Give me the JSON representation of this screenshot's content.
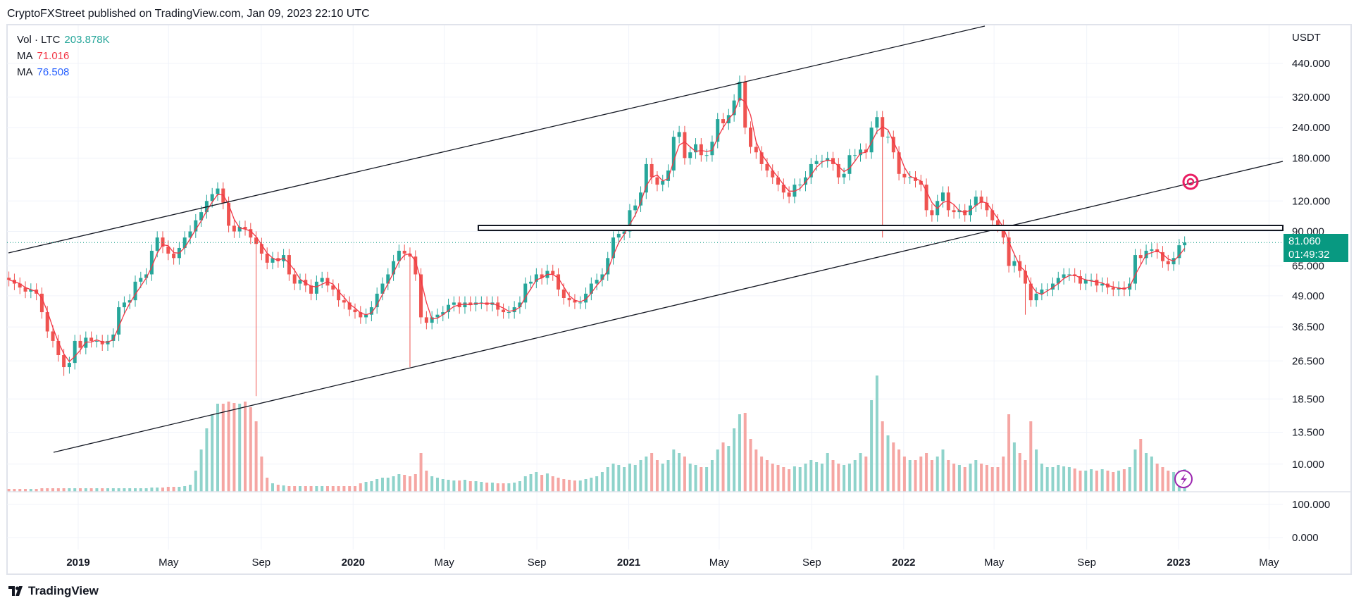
{
  "header": {
    "published": "CryptoFXStreet published on TradingView.com, Jan 09, 2023 22:10 UTC"
  },
  "legend": {
    "vol_label": "Vol · LTC",
    "vol_value": "203.878K",
    "ma1_label": "MA",
    "ma1_value": "71.016",
    "ma2_label": "MA",
    "ma2_value": "76.508"
  },
  "last_price": {
    "price": "81.060",
    "countdown": "01:49:32",
    "value": 81.06
  },
  "footer": {
    "brand": "TradingView"
  },
  "colors": {
    "up": "#26a69a",
    "down": "#ef5350",
    "up_vol": "#8fd3cb",
    "down_vol": "#f5a6a3",
    "ma": "#f23645",
    "last": "#089981",
    "alert": "#e91e63",
    "event": "#9c27b0"
  },
  "chart_data": {
    "type": "candlestick",
    "symbol": "LTC",
    "currency_label": "USDT",
    "scale": "log",
    "grid": true,
    "start_date": "2018-10-01",
    "end_date": "2023-01-09",
    "price_ticks": [
      "440.000",
      "320.000",
      "240.000",
      "180.000",
      "120.000",
      "90.000",
      "65.000",
      "49.000",
      "36.500",
      "26.500",
      "18.500",
      "13.500",
      "10.000"
    ],
    "indicator_ticks": [
      "100.000",
      "0.000"
    ],
    "time_ticks": [
      {
        "label": "2019",
        "date": "2019-01-01",
        "bold": true
      },
      {
        "label": "May",
        "date": "2019-05-01",
        "bold": false
      },
      {
        "label": "Sep",
        "date": "2019-09-01",
        "bold": false
      },
      {
        "label": "2020",
        "date": "2020-01-01",
        "bold": true
      },
      {
        "label": "May",
        "date": "2020-05-01",
        "bold": false
      },
      {
        "label": "Sep",
        "date": "2020-09-01",
        "bold": false
      },
      {
        "label": "2021",
        "date": "2021-01-01",
        "bold": true
      },
      {
        "label": "May",
        "date": "2021-05-01",
        "bold": false
      },
      {
        "label": "Sep",
        "date": "2021-09-01",
        "bold": false
      },
      {
        "label": "2022",
        "date": "2022-01-01",
        "bold": true
      },
      {
        "label": "May",
        "date": "2022-05-01",
        "bold": false
      },
      {
        "label": "Sep",
        "date": "2022-09-01",
        "bold": false
      },
      {
        "label": "2023",
        "date": "2023-01-01",
        "bold": true
      },
      {
        "label": "May",
        "date": "2023-05-01",
        "bold": false
      }
    ],
    "closes": [
      57,
      55,
      53,
      51,
      52,
      50,
      42,
      35,
      32,
      28,
      25,
      26,
      32,
      30,
      33,
      32,
      32,
      31,
      32,
      34,
      44,
      46,
      47,
      56,
      58,
      60,
      75,
      85,
      78,
      73,
      70,
      77,
      85,
      90,
      100,
      108,
      120,
      128,
      135,
      118,
      95,
      90,
      94,
      92,
      85,
      80,
      73,
      67,
      70,
      68,
      72,
      60,
      55,
      57,
      54,
      50,
      56,
      58,
      54,
      52,
      47,
      46,
      43,
      42,
      40,
      41,
      44,
      50,
      55,
      60,
      68,
      75,
      73,
      71,
      60,
      40,
      38,
      40,
      41,
      42,
      45,
      46,
      44,
      46,
      45,
      46,
      46,
      45,
      46,
      43,
      42,
      42,
      44,
      46,
      55,
      56,
      60,
      58,
      62,
      60,
      52,
      48,
      47,
      46,
      46,
      50,
      55,
      57,
      60,
      70,
      85,
      88,
      90,
      110,
      115,
      130,
      170,
      150,
      140,
      145,
      160,
      220,
      230,
      180,
      190,
      205,
      185,
      185,
      210,
      260,
      250,
      270,
      310,
      370,
      240,
      200,
      190,
      170,
      160,
      150,
      140,
      130,
      125,
      140,
      140,
      150,
      170,
      175,
      175,
      180,
      170,
      150,
      155,
      185,
      185,
      195,
      190,
      240,
      265,
      220,
      220,
      190,
      155,
      150,
      150,
      145,
      140,
      110,
      105,
      120,
      130,
      110,
      108,
      110,
      105,
      115,
      125,
      118,
      110,
      100,
      95,
      85,
      65,
      68,
      62,
      55,
      47,
      50,
      52,
      52,
      55,
      58,
      60,
      60,
      59,
      55,
      57,
      57,
      54,
      55,
      53,
      52,
      53,
      52,
      55,
      72,
      70,
      75,
      76,
      74,
      68,
      66,
      70,
      79,
      81.06
    ],
    "volumes": [
      4,
      4,
      4,
      4,
      4,
      4,
      5,
      5,
      5,
      5,
      5,
      5,
      5,
      5,
      5,
      5,
      5,
      5,
      5,
      5,
      5,
      5,
      5,
      5,
      5,
      5,
      6,
      6,
      6,
      7,
      7,
      7,
      8,
      10,
      30,
      60,
      90,
      110,
      125,
      125,
      128,
      126,
      125,
      128,
      120,
      100,
      50,
      20,
      12,
      10,
      9,
      8,
      8,
      8,
      8,
      8,
      8,
      8,
      8,
      8,
      8,
      8,
      8,
      8,
      12,
      14,
      15,
      18,
      20,
      20,
      22,
      25,
      24,
      22,
      25,
      55,
      30,
      22,
      20,
      18,
      17,
      16,
      16,
      17,
      15,
      15,
      14,
      13,
      13,
      12,
      12,
      12,
      13,
      15,
      22,
      25,
      28,
      24,
      26,
      22,
      20,
      18,
      17,
      16,
      16,
      18,
      20,
      22,
      28,
      35,
      40,
      38,
      35,
      40,
      38,
      45,
      50,
      55,
      45,
      40,
      45,
      60,
      55,
      50,
      40,
      38,
      35,
      35,
      45,
      60,
      70,
      65,
      90,
      110,
      112,
      75,
      60,
      50,
      45,
      40,
      38,
      35,
      32,
      36,
      35,
      40,
      45,
      42,
      40,
      55,
      45,
      40,
      38,
      40,
      45,
      55,
      50,
      130,
      165,
      100,
      80,
      70,
      60,
      50,
      45,
      45,
      50,
      55,
      45,
      50,
      60,
      45,
      40,
      38,
      35,
      40,
      45,
      40,
      38,
      35,
      35,
      50,
      110,
      70,
      55,
      45,
      100,
      60,
      40,
      35,
      35,
      38,
      36,
      35,
      33,
      30,
      30,
      32,
      30,
      32,
      30,
      28,
      30,
      32,
      35,
      60,
      75,
      55,
      50,
      40,
      35,
      30,
      28,
      30,
      32
    ],
    "notable_wicks": [
      {
        "date": "2018-12-10",
        "low": 23
      },
      {
        "date": "2019-08-26",
        "low": 19
      },
      {
        "date": "2020-03-16",
        "low": 25
      },
      {
        "date": "2021-05-10",
        "high": 410
      },
      {
        "date": "2021-12-06",
        "low": 85
      },
      {
        "date": "2022-06-13",
        "low": 41
      }
    ]
  }
}
